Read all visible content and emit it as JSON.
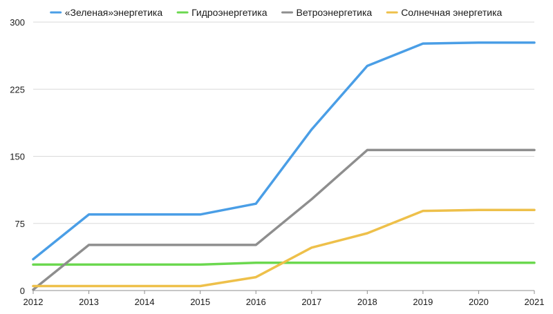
{
  "chart_data": {
    "type": "line",
    "title": "",
    "xlabel": "",
    "ylabel": "",
    "categories": [
      "2012",
      "2013",
      "2014",
      "2015",
      "2016",
      "2017",
      "2018",
      "2019",
      "2020",
      "2021"
    ],
    "ylim": [
      0,
      300
    ],
    "yticks": [
      0,
      75,
      150,
      225,
      300
    ],
    "grid": true,
    "legend_position": "top",
    "series": [
      {
        "name": "«Зеленая»энергетика",
        "color": "#4a9ee6",
        "values": [
          35,
          85,
          85,
          85,
          97,
          180,
          251,
          276,
          277,
          277
        ]
      },
      {
        "name": "Гидроэнергетика",
        "color": "#6bd84f",
        "values": [
          29,
          29,
          29,
          29,
          31,
          31,
          31,
          31,
          31,
          31
        ]
      },
      {
        "name": "Ветроэнергетика",
        "color": "#8e8e8e",
        "values": [
          1,
          51,
          51,
          51,
          51,
          102,
          157,
          157,
          157,
          157
        ]
      },
      {
        "name": "Солнечная энергетика",
        "color": "#eec04a",
        "values": [
          5,
          5,
          5,
          5,
          15,
          48,
          64,
          89,
          90,
          90
        ]
      }
    ]
  }
}
